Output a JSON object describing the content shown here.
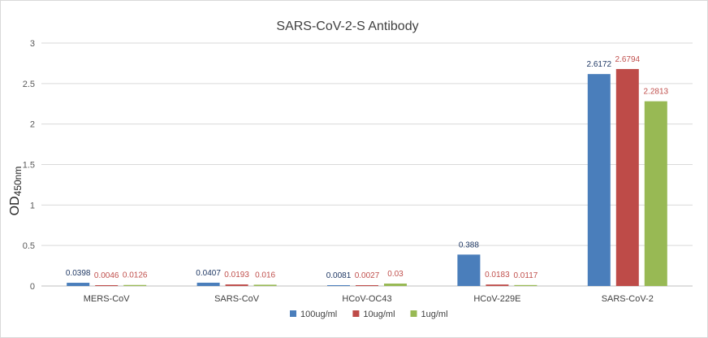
{
  "chart_data": {
    "type": "bar",
    "title": "SARS-CoV-2-S Antibody",
    "ylabel_main": "OD",
    "ylabel_sub": "450nm",
    "categories": [
      "MERS-CoV",
      "SARS-CoV",
      "HCoV-OC43",
      "HCoV-229E",
      "SARS-CoV-2"
    ],
    "series": [
      {
        "name": "100ug/ml",
        "color": "#4a7ebb",
        "label_color": "#1f3864",
        "values": [
          0.0398,
          0.0407,
          0.0081,
          0.388,
          2.6172
        ],
        "labels": [
          "0.0398",
          "0.0407",
          "0.0081",
          "0.388",
          "2.6172"
        ]
      },
      {
        "name": "10ug/ml",
        "color": "#be4b48",
        "label_color": "#c0504d",
        "values": [
          0.0046,
          0.0193,
          0.0027,
          0.0183,
          2.6794
        ],
        "labels": [
          "0.0046",
          "0.0193",
          "0.0027",
          "0.0183",
          "2.6794"
        ]
      },
      {
        "name": "1ug/ml",
        "color": "#98b954",
        "label_color": "#c0504d",
        "values": [
          0.0126,
          0.016,
          0.03,
          0.0117,
          2.2813
        ],
        "labels": [
          "0.0126",
          "0.016",
          "0.03",
          "0.0117",
          "2.2813"
        ]
      }
    ],
    "ylim": [
      0,
      3
    ],
    "yticks": [
      0,
      0.5,
      1,
      1.5,
      2,
      2.5,
      3
    ],
    "ytick_labels": [
      "0",
      "0.5",
      "1",
      "1.5",
      "2",
      "2.5",
      "3"
    ],
    "grid": true,
    "legend_position": "bottom"
  }
}
